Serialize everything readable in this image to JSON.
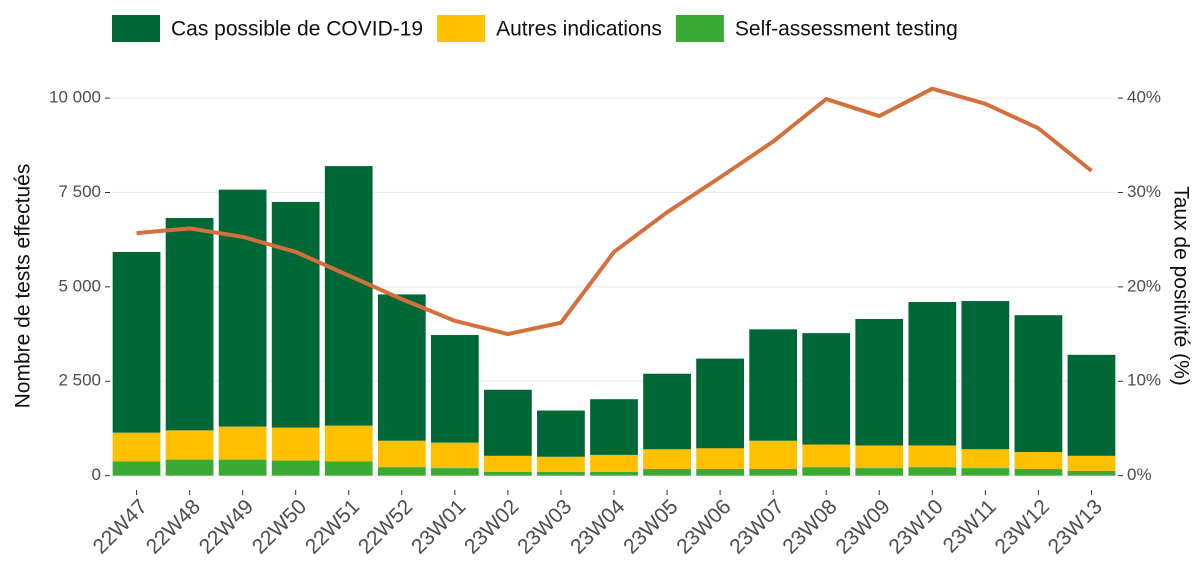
{
  "chart_data": {
    "type": "bar",
    "categories": [
      "22W47",
      "22W48",
      "22W49",
      "22W50",
      "22W51",
      "22W52",
      "23W01",
      "23W02",
      "23W03",
      "23W04",
      "23W05",
      "23W06",
      "23W07",
      "23W08",
      "23W09",
      "23W10",
      "23W11",
      "23W12",
      "23W13"
    ],
    "series": [
      {
        "name": "Self-assessment testing",
        "color": "#3aaa35",
        "values": [
          375,
          425,
          425,
          400,
          375,
          225,
          200,
          100,
          100,
          100,
          175,
          175,
          175,
          225,
          200,
          225,
          200,
          175,
          125
        ]
      },
      {
        "name": "Autres indications",
        "color": "#ffc000",
        "values": [
          765,
          775,
          875,
          875,
          950,
          700,
          675,
          425,
          400,
          450,
          525,
          550,
          750,
          600,
          600,
          575,
          500,
          450,
          400
        ]
      },
      {
        "name": "Cas possible de COVID-19",
        "color": "#006837",
        "values": [
          4785,
          5625,
          6275,
          5975,
          6875,
          3875,
          2850,
          1750,
          1225,
          1475,
          2000,
          2375,
          2950,
          2950,
          3350,
          3800,
          3925,
          3625,
          2675
        ]
      },
      {
        "type": "line",
        "axis": "y2",
        "color": "#d4703c",
        "values": [
          25.7,
          26.2,
          25.3,
          23.7,
          21.2,
          18.7,
          16.4,
          15.0,
          16.2,
          23.7,
          27.9,
          31.6,
          35.4,
          39.9,
          38.1,
          41.0,
          39.4,
          36.8,
          32.3
        ]
      }
    ],
    "legend_order": [
      "Cas possible de COVID-19",
      "Autres indications",
      "Self-assessment testing"
    ],
    "ylabel": "Nombre de tests effectués",
    "y2label": "Taux de positivité (%)",
    "ylim": [
      -380,
      10400
    ],
    "yticks": [
      0,
      {
        "value": 2500,
        "label": "2 500"
      },
      {
        "value": 5000,
        "label": "5 000"
      },
      {
        "value": 7500,
        "label": "7 500"
      },
      {
        "value": 10000,
        "label": "10 000"
      }
    ],
    "y2lim": [
      -1.52,
      41.6
    ],
    "y2ticks": [
      {
        "value": 0,
        "label": "0%"
      },
      {
        "value": 10,
        "label": "10%"
      },
      {
        "value": 20,
        "label": "20%"
      },
      {
        "value": 30,
        "label": "30%"
      },
      {
        "value": 40,
        "label": "40%"
      }
    ],
    "grid": true,
    "legend": "top"
  }
}
